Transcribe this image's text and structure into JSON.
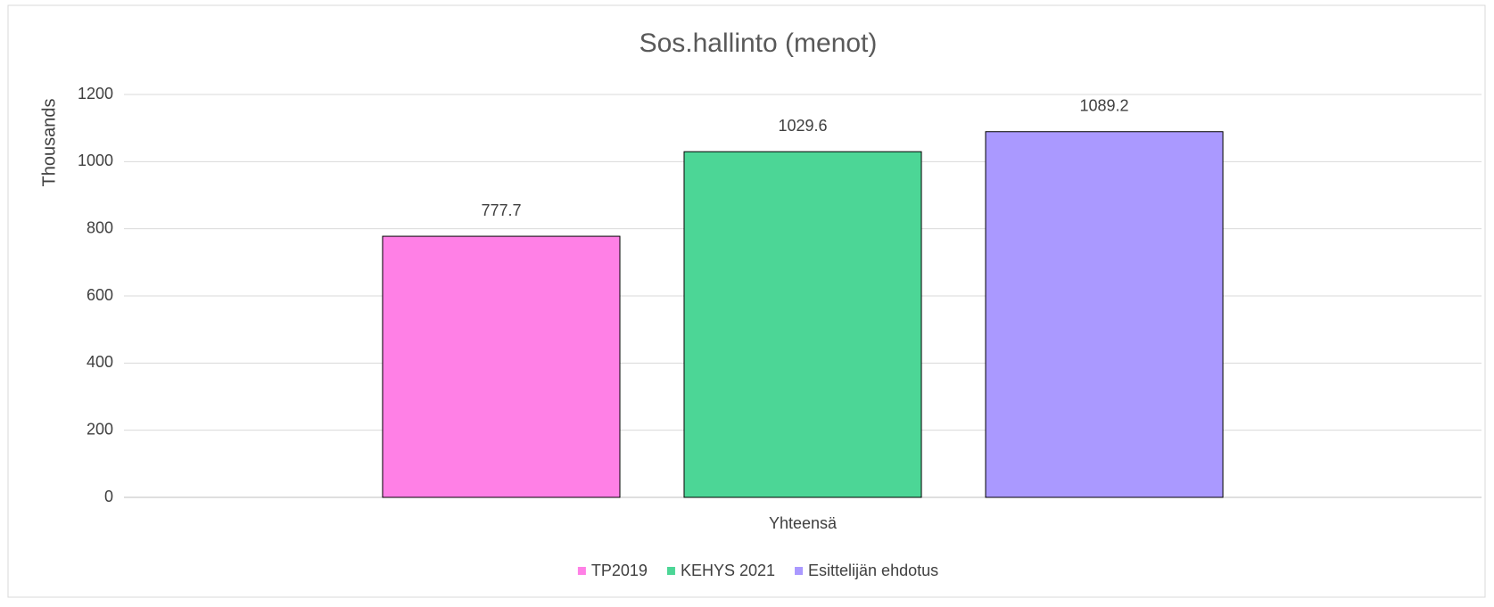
{
  "chart_data": {
    "type": "bar",
    "title": "Sos.hallinto (menot)",
    "y_axis_label": "Thousands",
    "categories": [
      "Yhteensä"
    ],
    "series": [
      {
        "name": "TP2019",
        "color": "#ff80e6",
        "values": [
          777.7
        ]
      },
      {
        "name": "KEHYS 2021",
        "color": "#4cd696",
        "values": [
          1029.6
        ]
      },
      {
        "name": "Esittelijän ehdotus",
        "color": "#aa99ff",
        "values": [
          1089.2
        ]
      }
    ],
    "ylim": [
      0,
      1200
    ],
    "yticks": [
      0,
      200,
      400,
      600,
      800,
      1000,
      1200
    ],
    "grid": true,
    "legend": "bottom"
  }
}
